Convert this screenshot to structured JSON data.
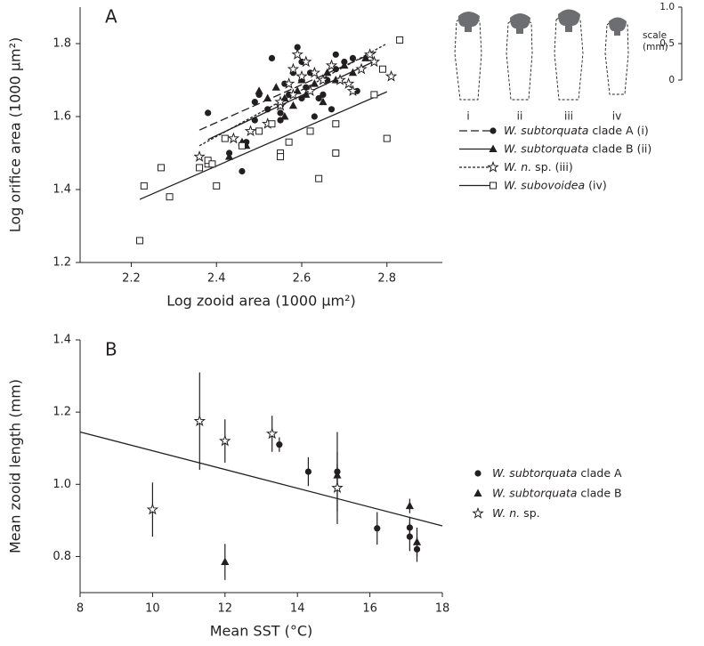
{
  "chart_data": [
    {
      "type": "scatter",
      "panel_label": "A",
      "x_label": "Log zooid area (1000 μm²)",
      "y_label": "Log orifice area (1000 μm²)",
      "xlim": [
        2.08,
        2.93
      ],
      "ylim": [
        1.2,
        1.9
      ],
      "xticks": [
        2.2,
        2.4,
        2.6,
        2.8
      ],
      "yticks": [
        1.2,
        1.4,
        1.6,
        1.8
      ],
      "legend": "right",
      "legend_style": "line",
      "zooid_labels": [
        "i",
        "ii",
        "iii",
        "iv"
      ],
      "scale_title": "scale",
      "scale_unit": "(mm)",
      "scale_ticks": [
        0,
        0.5,
        {
          "value": 1,
          "label": "1.0"
        }
      ],
      "series": [
        {
          "name": "W. subtorquata clade A (i)",
          "color": "#231f20",
          "marker": "circle",
          "line_style": "dashed",
          "x": [
            2.38,
            2.43,
            2.46,
            2.47,
            2.49,
            2.5,
            2.52,
            2.53,
            2.55,
            2.55,
            2.56,
            2.57,
            2.58,
            2.59,
            2.6,
            2.6,
            2.61,
            2.62,
            2.63,
            2.64,
            2.65,
            2.66,
            2.67,
            2.68,
            2.68,
            2.7,
            2.72,
            2.73,
            2.49,
            2.55
          ],
          "y": [
            1.61,
            1.5,
            1.45,
            1.53,
            1.64,
            1.66,
            1.62,
            1.76,
            1.59,
            1.63,
            1.69,
            1.66,
            1.72,
            1.79,
            1.65,
            1.75,
            1.68,
            1.72,
            1.6,
            1.65,
            1.66,
            1.7,
            1.62,
            1.73,
            1.77,
            1.75,
            1.76,
            1.67,
            1.59,
            1.61
          ],
          "fit": {
            "x": [
              2.36,
              2.775
            ],
            "y": [
              1.563,
              1.778
            ]
          }
        },
        {
          "name": "W. subtorquata clade B (ii)",
          "color": "#231f20",
          "marker": "triangle",
          "line_style": "solid",
          "x": [
            2.43,
            2.46,
            2.47,
            2.5,
            2.52,
            2.54,
            2.56,
            2.58,
            2.59,
            2.6,
            2.61,
            2.63,
            2.65,
            2.66,
            2.68,
            2.7,
            2.72,
            2.75,
            2.56
          ],
          "y": [
            1.49,
            1.53,
            1.52,
            1.67,
            1.65,
            1.68,
            1.65,
            1.63,
            1.67,
            1.7,
            1.66,
            1.69,
            1.64,
            1.72,
            1.7,
            1.74,
            1.72,
            1.76,
            1.6
          ],
          "fit": {
            "x": [
              2.38,
              2.775
            ],
            "y": [
              1.537,
              1.754
            ]
          }
        },
        {
          "name": "W. n. sp. (iii)",
          "color": "#231f20",
          "marker": "star",
          "line_style": "dotted",
          "x": [
            2.36,
            2.44,
            2.48,
            2.52,
            2.55,
            2.57,
            2.58,
            2.59,
            2.6,
            2.61,
            2.62,
            2.63,
            2.65,
            2.67,
            2.69,
            2.71,
            2.72,
            2.74,
            2.76,
            2.77,
            2.81,
            2.58,
            2.55
          ],
          "y": [
            1.49,
            1.54,
            1.56,
            1.58,
            1.63,
            1.69,
            1.73,
            1.77,
            1.71,
            1.75,
            1.67,
            1.72,
            1.7,
            1.74,
            1.7,
            1.69,
            1.67,
            1.73,
            1.77,
            1.75,
            1.71,
            1.66,
            1.64
          ],
          "fit": {
            "x": [
              2.36,
              2.8
            ],
            "y": [
              1.52,
              1.8
            ]
          }
        },
        {
          "name": "W. subovoidea (iv)",
          "color": "#231f20",
          "marker": "square",
          "line_style": "solid",
          "x": [
            2.22,
            2.23,
            2.27,
            2.29,
            2.36,
            2.38,
            2.38,
            2.39,
            2.4,
            2.42,
            2.46,
            2.5,
            2.53,
            2.55,
            2.55,
            2.57,
            2.62,
            2.64,
            2.68,
            2.68,
            2.77,
            2.8,
            2.79,
            2.83
          ],
          "y": [
            1.26,
            1.41,
            1.46,
            1.38,
            1.46,
            1.47,
            1.48,
            1.47,
            1.41,
            1.54,
            1.52,
            1.56,
            1.58,
            1.5,
            1.49,
            1.53,
            1.56,
            1.43,
            1.5,
            1.58,
            1.66,
            1.54,
            1.73,
            1.81
          ],
          "fit": {
            "x": [
              2.22,
              2.8
            ],
            "y": [
              1.373,
              1.668
            ]
          }
        }
      ]
    },
    {
      "type": "scatter",
      "panel_label": "B",
      "x_label": "Mean SST (°C)",
      "y_label": "Mean zooid length (mm)",
      "xlim": [
        8,
        18
      ],
      "ylim": [
        0.7,
        1.4
      ],
      "xticks": [
        8,
        10,
        12,
        14,
        16,
        18
      ],
      "yticks": [
        0.8,
        {
          "value": 1,
          "label": "1.0"
        },
        1.2,
        1.4
      ],
      "legend": "right",
      "legend_style": "marker",
      "fit": {
        "x": [
          8,
          18
        ],
        "y": [
          1.145,
          0.885
        ]
      },
      "series": [
        {
          "name": "W. subtorquata clade A",
          "color": "#231f20",
          "marker": "circle",
          "x": [
            13.5,
            14.3,
            15.1,
            16.2,
            17.1,
            17.1,
            17.3
          ],
          "y": [
            1.11,
            1.035,
            1.035,
            0.878,
            0.88,
            0.855,
            0.82
          ],
          "errors": [
            0.02,
            0.04,
            0.11,
            0.045,
            0.03,
            0.04,
            0.035
          ]
        },
        {
          "name": "W. subtorquata clade B",
          "color": "#231f20",
          "marker": "triangle",
          "x": [
            12,
            15.1,
            17.1,
            17.3
          ],
          "y": [
            0.785,
            1.025,
            0.94,
            0.84
          ],
          "errors": [
            0.05,
            0.03,
            0.02,
            0.04
          ]
        },
        {
          "name": "W. n. sp.",
          "color": "#231f20",
          "marker": "star",
          "x": [
            10,
            11.3,
            12,
            13.3,
            15.1
          ],
          "y": [
            0.93,
            1.175,
            1.12,
            1.14,
            0.99
          ],
          "errors": [
            0.075,
            0.135,
            0.06,
            0.05,
            0.1
          ]
        }
      ]
    }
  ]
}
